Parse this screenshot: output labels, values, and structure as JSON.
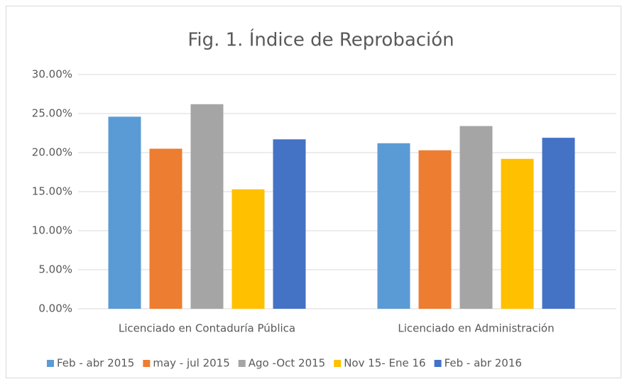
{
  "chart_data": {
    "type": "bar",
    "title": "Fig. 1.  Índice de Reprobación",
    "categories": [
      "Licenciado en Contaduría Pública",
      "Licenciado en Administración"
    ],
    "series": [
      {
        "name": "Feb - abr 2015",
        "color": "#5b9bd5",
        "values": [
          24.6,
          21.2
        ]
      },
      {
        "name": "may - jul 2015",
        "color": "#ed7d31",
        "values": [
          20.5,
          20.3
        ]
      },
      {
        "name": "Ago -Oct 2015",
        "color": "#a5a5a5",
        "values": [
          26.2,
          23.4
        ]
      },
      {
        "name": "Nov 15- Ene 16",
        "color": "#ffc000",
        "values": [
          15.3,
          19.2
        ]
      },
      {
        "name": "Feb - abr 2016",
        "color": "#4472c4",
        "values": [
          21.7,
          21.9
        ]
      }
    ],
    "ylim": [
      0,
      30
    ],
    "yticks": [
      {
        "value": 0,
        "label": "0.00%"
      },
      {
        "value": 5,
        "label": "5.00%"
      },
      {
        "value": 10,
        "label": "10.00%"
      },
      {
        "value": 15,
        "label": "15.00%"
      },
      {
        "value": 20,
        "label": "20.00%"
      },
      {
        "value": 25,
        "label": "25.00%"
      },
      {
        "value": 30,
        "label": "30.00%"
      }
    ],
    "grid": true,
    "legend": "bottom"
  }
}
